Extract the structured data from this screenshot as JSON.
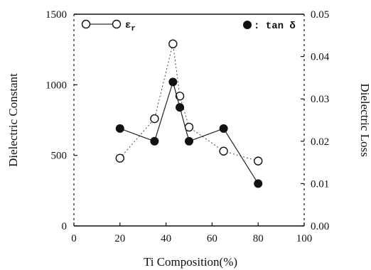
{
  "chart_data": {
    "type": "line",
    "x": [
      20,
      35,
      43,
      46,
      50,
      65,
      80
    ],
    "xlabel": "Ti Composition(%)",
    "xlim": [
      0,
      100
    ],
    "xticks": [
      "0",
      "20",
      "40",
      "60",
      "80",
      "100"
    ],
    "y_left": {
      "label": "Dielectric Constant",
      "lim": [
        0,
        1500
      ],
      "ticks": [
        "0",
        "500",
        "1000",
        "1500"
      ]
    },
    "y_right": {
      "label": "Dielectric Loss",
      "lim": [
        0,
        0.05
      ],
      "ticks": [
        "0.00",
        "0.01",
        "0.02",
        "0.03",
        "0.04",
        "0.05"
      ]
    },
    "series": [
      {
        "legend_text": "ε",
        "legend_sub": "r",
        "marker": "open-circle",
        "axis": "left",
        "values": [
          480,
          760,
          1290,
          920,
          700,
          530,
          460
        ]
      },
      {
        "legend_text": ": tan δ",
        "marker": "filled-circle",
        "axis": "right",
        "values": [
          0.023,
          0.02,
          0.034,
          0.028,
          0.02,
          0.023,
          0.01
        ]
      }
    ],
    "grid": false,
    "legend": "top"
  },
  "colors": {
    "ink": "#111111",
    "line": "#333333",
    "background": "#ffffff"
  }
}
